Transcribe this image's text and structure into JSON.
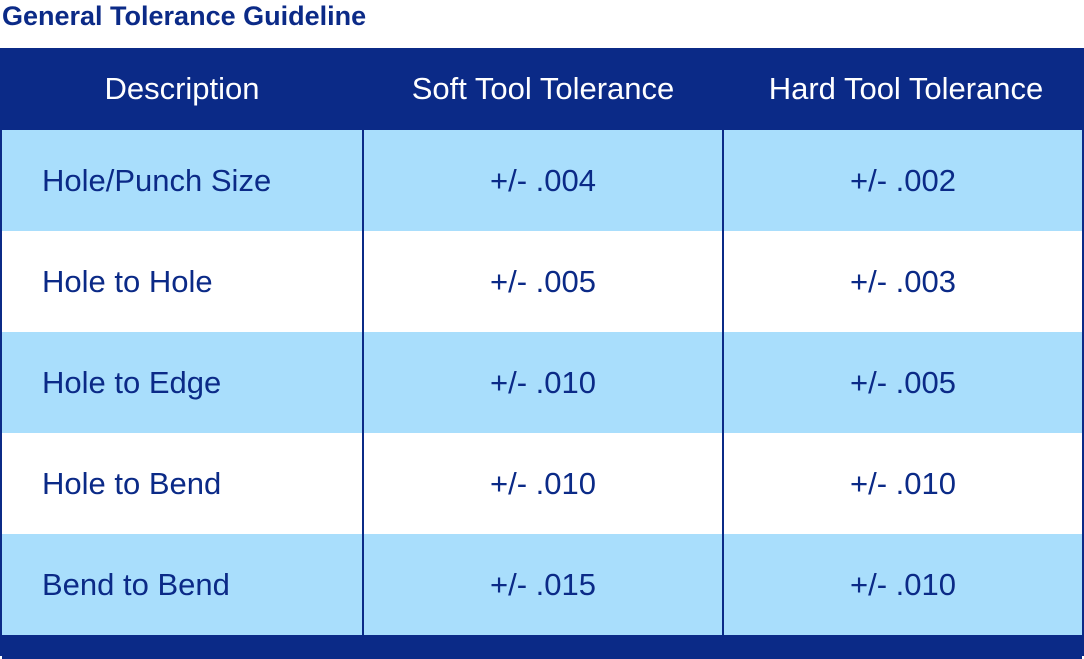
{
  "title": "General Tolerance Guideline",
  "table": {
    "headers": [
      "Description",
      "Soft Tool Tolerance",
      "Hard Tool Tolerance"
    ],
    "rows": [
      [
        "Hole/Punch Size",
        "+/- .004",
        "+/- .002"
      ],
      [
        "Hole to Hole",
        "+/- .005",
        "+/- .003"
      ],
      [
        "Hole to Edge",
        "+/- .010",
        "+/- .005"
      ],
      [
        "Hole to Bend",
        "+/- .010",
        "+/- .010"
      ],
      [
        "Bend to Bend",
        "+/- .015",
        "+/- .010"
      ]
    ]
  },
  "colors": {
    "navy": "#0b2a87",
    "light_blue": "#a9defc",
    "white": "#ffffff"
  }
}
